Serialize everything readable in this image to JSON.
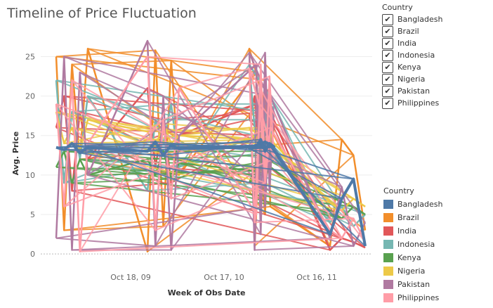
{
  "chart_data": {
    "type": "line",
    "title": "Timeline of Price Fluctuation",
    "xlabel": "Week of Obs Date",
    "ylabel": "Avg. Price",
    "ylim": [
      -1.5,
      27
    ],
    "yticks": [
      0,
      5,
      10,
      15,
      20,
      25
    ],
    "xticks": [
      "Oct 18, 09",
      "Oct 17, 10",
      "Oct 16, 11"
    ],
    "grid": "horizontal",
    "legend_position": "right",
    "series": [
      {
        "name": "Bangladesh",
        "color": "#4e79a7",
        "segments": [
          [
            13.5,
            13.2,
            14.0,
            12.8,
            13.5
          ],
          [
            13.0,
            14.2,
            12.5,
            13.8,
            13.3
          ],
          [
            13.6,
            14.5,
            13.0,
            14.0,
            13.6
          ],
          [
            13.4,
            13.7,
            13.9,
            14.2,
            13.8
          ],
          [
            2.5,
            7.0,
            9.5,
            1.0
          ]
        ]
      },
      {
        "name": "Brazil",
        "color": "#f28e2b",
        "segments": [
          [
            25.0,
            3.0,
            24.0,
            12.0,
            26.0
          ],
          [
            0.3,
            25.8,
            3.5,
            24.5,
            10.0
          ],
          [
            23.0,
            11.0,
            5.0,
            21.0,
            15.0
          ],
          [
            26.0,
            1.0,
            14.0,
            22.0,
            6.0
          ],
          [
            1.0,
            14.5,
            12.5,
            3.0
          ]
        ]
      },
      {
        "name": "India",
        "color": "#e15759",
        "segments": [
          [
            16.0,
            20.0,
            8.0,
            18.0,
            12.0
          ],
          [
            21.0,
            11.0,
            17.0,
            9.0,
            15.0
          ],
          [
            19.0,
            14.0,
            10.0,
            18.0,
            16.0
          ],
          [
            17.0,
            20.0,
            12.0,
            15.0,
            18.0
          ],
          [
            0.5,
            2.0,
            1.5,
            0.8
          ]
        ]
      },
      {
        "name": "Indonesia",
        "color": "#76b7b2",
        "segments": [
          [
            22.0,
            9.0,
            18.0,
            12.0,
            20.0
          ],
          [
            8.0,
            17.0,
            14.0,
            19.0,
            11.0
          ],
          [
            15.0,
            9.0,
            17.0,
            12.0,
            19.0
          ],
          [
            24.0,
            16.0,
            10.0,
            18.0,
            13.0
          ],
          [
            4.0,
            6.0,
            3.5,
            5.0
          ]
        ]
      },
      {
        "name": "Kenya",
        "color": "#59a14f",
        "segments": [
          [
            11.0,
            13.0,
            9.0,
            12.0,
            10.0
          ],
          [
            12.0,
            10.0,
            13.0,
            9.5,
            11.5
          ],
          [
            10.5,
            12.5,
            11.0,
            13.0,
            12.0
          ],
          [
            9.0,
            11.0,
            12.5,
            10.0,
            11.0
          ],
          [
            5.5,
            4.5,
            6.0,
            5.0
          ]
        ]
      },
      {
        "name": "Nigeria",
        "color": "#edc948",
        "segments": [
          [
            18.0,
            14.0,
            16.0,
            13.0,
            17.0
          ],
          [
            15.5,
            13.5,
            16.5,
            14.0,
            15.0
          ],
          [
            14.5,
            16.0,
            13.5,
            15.5,
            14.0
          ],
          [
            16.0,
            14.5,
            15.0,
            13.0,
            14.5
          ],
          [
            6.5,
            5.5,
            7.0,
            6.0
          ]
        ]
      },
      {
        "name": "Pakistan",
        "color": "#b07aa1",
        "segments": [
          [
            2.0,
            25.0,
            0.5,
            23.0,
            10.0
          ],
          [
            27.0,
            1.0,
            20.0,
            0.5,
            15.0
          ],
          [
            24.0,
            2.5,
            25.5,
            8.0,
            18.0
          ],
          [
            25.5,
            0.5,
            22.0,
            6.0,
            20.0
          ],
          [
            2.0,
            8.5,
            1.0,
            4.0
          ]
        ]
      },
      {
        "name": "Philippines",
        "color": "#ff9da7",
        "segments": [
          [
            19.0,
            6.0,
            22.0,
            0.3,
            14.0
          ],
          [
            25.0,
            3.0,
            17.0,
            7.0,
            21.0
          ],
          [
            5.0,
            24.0,
            9.0,
            22.5,
            12.0
          ],
          [
            23.5,
            4.0,
            19.0,
            9.0,
            16.0
          ],
          [
            3.0,
            2.0,
            4.5,
            1.5
          ]
        ]
      }
    ]
  },
  "filter": {
    "title": "Country",
    "check_glyph": "✔",
    "items": [
      "Bangladesh",
      "Brazil",
      "India",
      "Indonesia",
      "Kenya",
      "Nigeria",
      "Pakistan",
      "Philippines"
    ]
  },
  "legend": {
    "title": "Country"
  }
}
